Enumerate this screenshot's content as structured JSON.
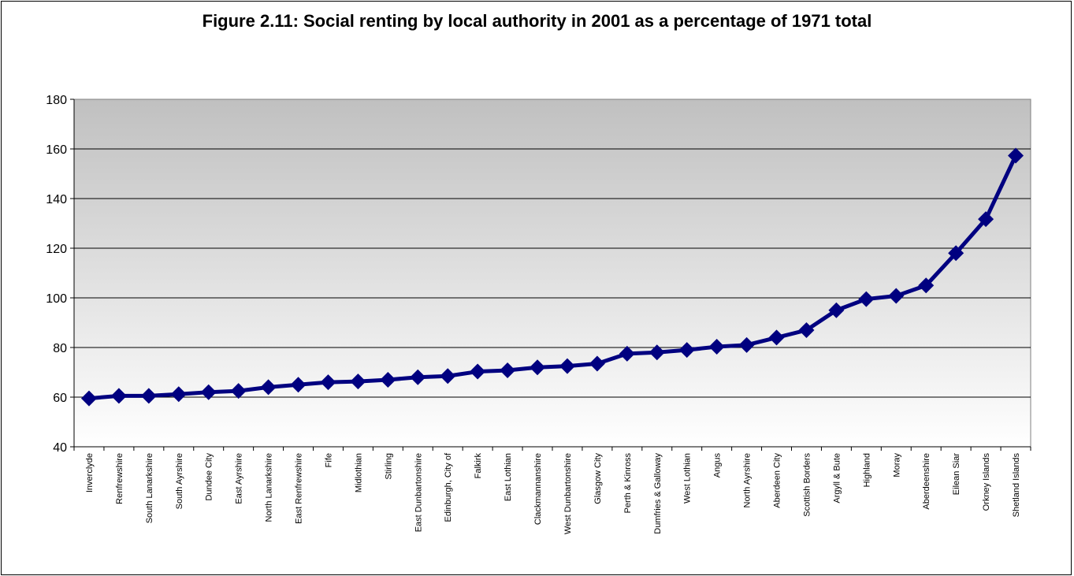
{
  "chart_data": {
    "type": "line",
    "title": "Figure 2.11: Social renting by local authority in 2001 as a percentage of 1971 total",
    "xlabel": "",
    "ylabel": "",
    "ylim": [
      40,
      180
    ],
    "yticks": [
      40,
      60,
      80,
      100,
      120,
      140,
      160,
      180
    ],
    "grid": true,
    "legend": "none",
    "categories": [
      "Inverclyde",
      "Renfrewshire",
      "South Lanarkshire",
      "South Ayrshire",
      "Dundee City",
      "East Ayrshire",
      "North Lanarkshire",
      "East Renfrewshire",
      "Fife",
      "Midlothian",
      "Stirling",
      "East Dunbartonshire",
      "Edinburgh, City of",
      "Falkirk",
      "East Lothian",
      "Clackmannanshire",
      "West Dunbartonshire",
      "Glasgow City",
      "Perth & Kinross",
      "Dumfries & Galloway",
      "West Lothian",
      "Angus",
      "North Ayrshire",
      "Aberdeen City",
      "Scottish Borders",
      "Argyll & Bute",
      "Highland",
      "Moray",
      "Aberdeenshire",
      "Eilean Siar",
      "Orkney Islands",
      "Shetland Islands"
    ],
    "values": [
      59.5,
      60.5,
      60.5,
      61.2,
      62.0,
      62.5,
      64.0,
      65.0,
      66.0,
      66.3,
      67.0,
      68.0,
      68.5,
      70.3,
      70.8,
      72.0,
      72.5,
      73.5,
      77.5,
      78.0,
      79.0,
      80.3,
      81.0,
      84.0,
      87.0,
      95.0,
      99.5,
      100.8,
      105.0,
      118.0,
      131.7,
      157.3
    ],
    "colors": {
      "line": "#000080",
      "marker": "#000080",
      "plot_bg_top": "#c0c0c0",
      "plot_bg_bottom": "#ffffff",
      "grid": "#000000"
    }
  }
}
